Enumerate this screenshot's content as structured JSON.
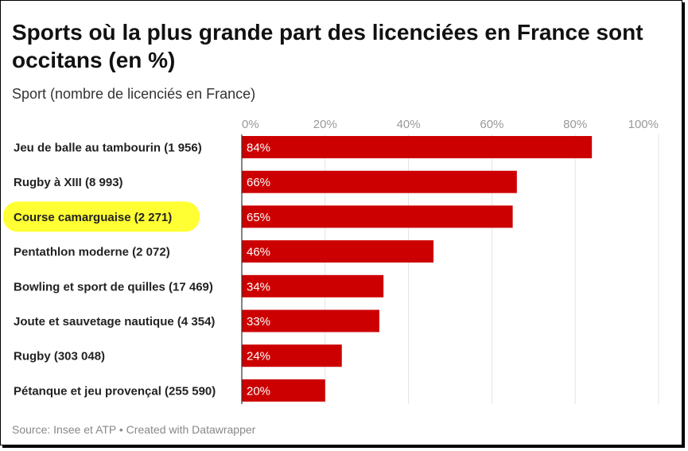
{
  "chart_data": {
    "type": "bar",
    "orientation": "horizontal",
    "title": "Sports où la plus grande part des licenciées en France sont occitans (en %)",
    "subtitle": "Sport (nombre de licenciés en France)",
    "categories": [
      "Jeu de balle au tambourin (1 956)",
      "Rugby à XIII (8 993)",
      "Course camarguaise (2 271)",
      "Pentathlon moderne (2 072)",
      "Bowling et sport de quilles (17 469)",
      "Joute et sauvetage nautique (4 354)",
      "Rugby (303 048)",
      "Pétanque et jeu provençal (255 590)"
    ],
    "values": [
      84,
      66,
      65,
      46,
      34,
      33,
      24,
      20
    ],
    "data_labels": [
      "84%",
      "66%",
      "65%",
      "46%",
      "34%",
      "33%",
      "24%",
      "20%"
    ],
    "xlim": [
      0,
      100
    ],
    "x_ticks": [
      0,
      20,
      40,
      60,
      80,
      100
    ],
    "x_tick_labels": [
      "0%",
      "20%",
      "40%",
      "60%",
      "80%",
      "100%"
    ],
    "grid": true,
    "highlighted_category": "Course camarguaise (2 271)",
    "colors": {
      "bar": "#cc0000",
      "highlight": "#ffff33",
      "grid": "#e3e3e3",
      "axis": "#333333"
    },
    "source": "Source: Insee et ATP • Created with Datawrapper"
  }
}
